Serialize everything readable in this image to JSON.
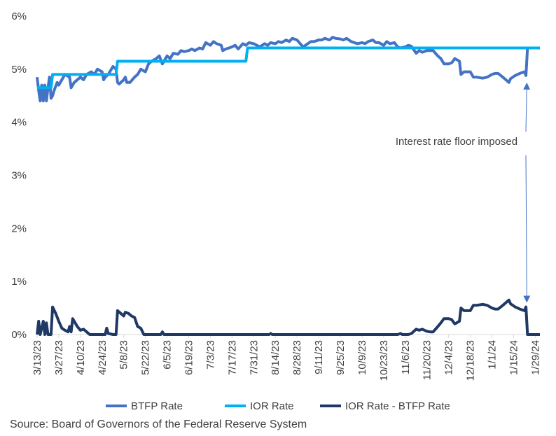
{
  "chart_data": {
    "type": "line",
    "title": "",
    "xlabel": "",
    "ylabel": "",
    "ylim": [
      0,
      6
    ],
    "y_ticks": [
      0,
      1,
      2,
      3,
      4,
      5,
      6
    ],
    "y_tick_labels": [
      "0%",
      "1%",
      "2%",
      "3%",
      "4%",
      "5%",
      "6%"
    ],
    "x_ticks": [
      "2023-03-13",
      "2023-03-27",
      "2023-04-10",
      "2023-04-24",
      "2023-05-08",
      "2023-05-22",
      "2023-06-05",
      "2023-06-19",
      "2023-07-03",
      "2023-07-17",
      "2023-07-31",
      "2023-08-14",
      "2023-08-28",
      "2023-09-11",
      "2023-09-25",
      "2023-10-09",
      "2023-10-23",
      "2023-11-06",
      "2023-11-20",
      "2023-12-04",
      "2023-12-18",
      "2024-01-01",
      "2024-01-15",
      "2024-01-29"
    ],
    "x_tick_labels": [
      "3/13/23",
      "3/27/23",
      "4/10/23",
      "4/24/23",
      "5/8/23",
      "5/22/23",
      "6/5/23",
      "6/19/23",
      "7/3/23",
      "7/17/23",
      "7/31/23",
      "8/14/23",
      "8/28/23",
      "9/11/23",
      "9/25/23",
      "10/9/23",
      "10/23/23",
      "11/6/23",
      "11/20/23",
      "12/4/23",
      "12/18/23",
      "1/1/24",
      "1/15/24",
      "1/29/24"
    ],
    "x_range": [
      "2023-03-13",
      "2024-02-01"
    ],
    "grid": "none",
    "legend_position": "bottom",
    "series": [
      {
        "name": "BTFP Rate",
        "color": "#4472C4",
        "points": [
          [
            "2023-03-13",
            4.85
          ],
          [
            "2023-03-14",
            4.6
          ],
          [
            "2023-03-15",
            4.4
          ],
          [
            "2023-03-16",
            4.7
          ],
          [
            "2023-03-17",
            4.4
          ],
          [
            "2023-03-18",
            4.7
          ],
          [
            "2023-03-19",
            4.4
          ],
          [
            "2023-03-20",
            4.65
          ],
          [
            "2023-03-21",
            4.85
          ],
          [
            "2023-03-22",
            4.45
          ],
          [
            "2023-03-23",
            4.5
          ],
          [
            "2023-03-24",
            4.6
          ],
          [
            "2023-03-26",
            4.75
          ],
          [
            "2023-03-27",
            4.7
          ],
          [
            "2023-03-29",
            4.8
          ],
          [
            "2023-03-31",
            4.9
          ],
          [
            "2023-04-03",
            4.85
          ],
          [
            "2023-04-04",
            4.65
          ],
          [
            "2023-04-06",
            4.75
          ],
          [
            "2023-04-10",
            4.85
          ],
          [
            "2023-04-12",
            4.8
          ],
          [
            "2023-04-14",
            4.9
          ],
          [
            "2023-04-17",
            4.95
          ],
          [
            "2023-04-19",
            4.9
          ],
          [
            "2023-04-21",
            5.0
          ],
          [
            "2023-04-24",
            4.95
          ],
          [
            "2023-04-25",
            4.8
          ],
          [
            "2023-04-26",
            4.85
          ],
          [
            "2023-04-28",
            4.9
          ],
          [
            "2023-05-01",
            5.05
          ],
          [
            "2023-05-03",
            5.0
          ],
          [
            "2023-05-04",
            4.75
          ],
          [
            "2023-05-05",
            4.72
          ],
          [
            "2023-05-08",
            4.8
          ],
          [
            "2023-05-09",
            4.85
          ],
          [
            "2023-05-10",
            4.75
          ],
          [
            "2023-05-12",
            4.75
          ],
          [
            "2023-05-15",
            4.85
          ],
          [
            "2023-05-17",
            4.9
          ],
          [
            "2023-05-19",
            5.0
          ],
          [
            "2023-05-22",
            4.95
          ],
          [
            "2023-05-24",
            5.1
          ],
          [
            "2023-05-26",
            5.15
          ],
          [
            "2023-05-29",
            5.2
          ],
          [
            "2023-05-31",
            5.25
          ],
          [
            "2023-06-02",
            5.1
          ],
          [
            "2023-06-05",
            5.25
          ],
          [
            "2023-06-07",
            5.2
          ],
          [
            "2023-06-09",
            5.3
          ],
          [
            "2023-06-12",
            5.28
          ],
          [
            "2023-06-14",
            5.35
          ],
          [
            "2023-06-16",
            5.33
          ],
          [
            "2023-06-19",
            5.35
          ],
          [
            "2023-06-21",
            5.38
          ],
          [
            "2023-06-23",
            5.35
          ],
          [
            "2023-06-26",
            5.4
          ],
          [
            "2023-06-28",
            5.38
          ],
          [
            "2023-06-30",
            5.5
          ],
          [
            "2023-07-03",
            5.45
          ],
          [
            "2023-07-05",
            5.52
          ],
          [
            "2023-07-07",
            5.48
          ],
          [
            "2023-07-10",
            5.45
          ],
          [
            "2023-07-11",
            5.35
          ],
          [
            "2023-07-13",
            5.38
          ],
          [
            "2023-07-17",
            5.42
          ],
          [
            "2023-07-19",
            5.45
          ],
          [
            "2023-07-21",
            5.38
          ],
          [
            "2023-07-24",
            5.48
          ],
          [
            "2023-07-26",
            5.45
          ],
          [
            "2023-07-28",
            5.5
          ],
          [
            "2023-07-31",
            5.48
          ],
          [
            "2023-08-02",
            5.45
          ],
          [
            "2023-08-04",
            5.42
          ],
          [
            "2023-08-07",
            5.48
          ],
          [
            "2023-08-09",
            5.45
          ],
          [
            "2023-08-11",
            5.5
          ],
          [
            "2023-08-14",
            5.48
          ],
          [
            "2023-08-16",
            5.52
          ],
          [
            "2023-08-18",
            5.5
          ],
          [
            "2023-08-21",
            5.55
          ],
          [
            "2023-08-23",
            5.52
          ],
          [
            "2023-08-25",
            5.58
          ],
          [
            "2023-08-28",
            5.55
          ],
          [
            "2023-08-30",
            5.48
          ],
          [
            "2023-09-01",
            5.42
          ],
          [
            "2023-09-04",
            5.48
          ],
          [
            "2023-09-06",
            5.52
          ],
          [
            "2023-09-08",
            5.52
          ],
          [
            "2023-09-11",
            5.55
          ],
          [
            "2023-09-13",
            5.55
          ],
          [
            "2023-09-15",
            5.58
          ],
          [
            "2023-09-18",
            5.55
          ],
          [
            "2023-09-20",
            5.6
          ],
          [
            "2023-09-22",
            5.58
          ],
          [
            "2023-09-25",
            5.57
          ],
          [
            "2023-09-27",
            5.55
          ],
          [
            "2023-09-29",
            5.58
          ],
          [
            "2023-10-02",
            5.52
          ],
          [
            "2023-10-04",
            5.5
          ],
          [
            "2023-10-06",
            5.48
          ],
          [
            "2023-10-09",
            5.5
          ],
          [
            "2023-10-11",
            5.48
          ],
          [
            "2023-10-13",
            5.52
          ],
          [
            "2023-10-16",
            5.55
          ],
          [
            "2023-10-18",
            5.5
          ],
          [
            "2023-10-20",
            5.5
          ],
          [
            "2023-10-23",
            5.45
          ],
          [
            "2023-10-25",
            5.52
          ],
          [
            "2023-10-27",
            5.48
          ],
          [
            "2023-10-30",
            5.5
          ],
          [
            "2023-11-01",
            5.42
          ],
          [
            "2023-11-03",
            5.4
          ],
          [
            "2023-11-06",
            5.42
          ],
          [
            "2023-11-08",
            5.45
          ],
          [
            "2023-11-10",
            5.43
          ],
          [
            "2023-11-13",
            5.3
          ],
          [
            "2023-11-15",
            5.35
          ],
          [
            "2023-11-17",
            5.32
          ],
          [
            "2023-11-20",
            5.35
          ],
          [
            "2023-11-22",
            5.35
          ],
          [
            "2023-11-24",
            5.35
          ],
          [
            "2023-11-27",
            5.25
          ],
          [
            "2023-11-29",
            5.2
          ],
          [
            "2023-12-01",
            5.1
          ],
          [
            "2023-12-04",
            5.1
          ],
          [
            "2023-12-06",
            5.12
          ],
          [
            "2023-12-08",
            5.2
          ],
          [
            "2023-12-11",
            5.15
          ],
          [
            "2023-12-12",
            4.9
          ],
          [
            "2023-12-14",
            4.95
          ],
          [
            "2023-12-18",
            4.95
          ],
          [
            "2023-12-20",
            4.85
          ],
          [
            "2023-12-22",
            4.85
          ],
          [
            "2023-12-26",
            4.83
          ],
          [
            "2023-12-29",
            4.85
          ],
          [
            "2024-01-01",
            4.9
          ],
          [
            "2024-01-03",
            4.92
          ],
          [
            "2024-01-05",
            4.92
          ],
          [
            "2024-01-08",
            4.85
          ],
          [
            "2024-01-10",
            4.8
          ],
          [
            "2024-01-12",
            4.75
          ],
          [
            "2024-01-13",
            4.82
          ],
          [
            "2024-01-16",
            4.88
          ],
          [
            "2024-01-19",
            4.92
          ],
          [
            "2024-01-22",
            4.95
          ],
          [
            "2024-01-23",
            4.88
          ],
          [
            "2024-01-24",
            5.4
          ],
          [
            "2024-02-01",
            5.4
          ]
        ]
      },
      {
        "name": "IOR Rate",
        "color": "#00B0F0",
        "points": [
          [
            "2023-03-13",
            4.65
          ],
          [
            "2023-03-22",
            4.65
          ],
          [
            "2023-03-23",
            4.9
          ],
          [
            "2023-05-03",
            4.9
          ],
          [
            "2023-05-04",
            5.15
          ],
          [
            "2023-07-26",
            5.15
          ],
          [
            "2023-07-27",
            5.4
          ],
          [
            "2024-02-01",
            5.4
          ]
        ]
      },
      {
        "name": "IOR Rate - BTFP Rate",
        "color": "#1F3864",
        "points": [
          [
            "2023-03-13",
            0.0
          ],
          [
            "2023-03-14",
            0.25
          ],
          [
            "2023-03-15",
            0.0
          ],
          [
            "2023-03-17",
            0.25
          ],
          [
            "2023-03-18",
            0.0
          ],
          [
            "2023-03-19",
            0.22
          ],
          [
            "2023-03-20",
            0.0
          ],
          [
            "2023-03-22",
            0.0
          ],
          [
            "2023-03-23",
            0.52
          ],
          [
            "2023-03-25",
            0.4
          ],
          [
            "2023-03-27",
            0.25
          ],
          [
            "2023-03-29",
            0.12
          ],
          [
            "2023-03-31",
            0.08
          ],
          [
            "2023-04-02",
            0.05
          ],
          [
            "2023-04-03",
            0.15
          ],
          [
            "2023-04-04",
            0.05
          ],
          [
            "2023-04-05",
            0.3
          ],
          [
            "2023-04-06",
            0.25
          ],
          [
            "2023-04-08",
            0.15
          ],
          [
            "2023-04-10",
            0.08
          ],
          [
            "2023-04-12",
            0.1
          ],
          [
            "2023-04-14",
            0.05
          ],
          [
            "2023-04-16",
            0.0
          ],
          [
            "2023-04-26",
            0.0
          ],
          [
            "2023-04-27",
            0.12
          ],
          [
            "2023-04-28",
            0.02
          ],
          [
            "2023-05-01",
            0.0
          ],
          [
            "2023-05-03",
            0.0
          ],
          [
            "2023-05-04",
            0.45
          ],
          [
            "2023-05-06",
            0.4
          ],
          [
            "2023-05-08",
            0.35
          ],
          [
            "2023-05-09",
            0.42
          ],
          [
            "2023-05-11",
            0.4
          ],
          [
            "2023-05-13",
            0.35
          ],
          [
            "2023-05-15",
            0.32
          ],
          [
            "2023-05-17",
            0.15
          ],
          [
            "2023-05-19",
            0.12
          ],
          [
            "2023-05-21",
            0.0
          ],
          [
            "2023-05-29",
            0.0
          ],
          [
            "2023-06-01",
            0.0
          ],
          [
            "2023-06-02",
            0.05
          ],
          [
            "2023-06-03",
            0.0
          ],
          [
            "2023-07-22",
            0.0
          ],
          [
            "2023-07-24",
            0.0
          ],
          [
            "2023-08-10",
            0.0
          ],
          [
            "2023-08-11",
            0.02
          ],
          [
            "2023-08-12",
            0.0
          ],
          [
            "2023-11-01",
            0.0
          ],
          [
            "2023-11-03",
            0.02
          ],
          [
            "2023-11-04",
            0.0
          ],
          [
            "2023-11-08",
            0.0
          ],
          [
            "2023-11-10",
            0.02
          ],
          [
            "2023-11-13",
            0.1
          ],
          [
            "2023-11-15",
            0.08
          ],
          [
            "2023-11-17",
            0.1
          ],
          [
            "2023-11-20",
            0.06
          ],
          [
            "2023-11-22",
            0.05
          ],
          [
            "2023-11-24",
            0.05
          ],
          [
            "2023-11-27",
            0.15
          ],
          [
            "2023-11-29",
            0.22
          ],
          [
            "2023-12-01",
            0.3
          ],
          [
            "2023-12-04",
            0.3
          ],
          [
            "2023-12-06",
            0.28
          ],
          [
            "2023-12-08",
            0.2
          ],
          [
            "2023-12-11",
            0.25
          ],
          [
            "2023-12-12",
            0.5
          ],
          [
            "2023-12-14",
            0.45
          ],
          [
            "2023-12-18",
            0.45
          ],
          [
            "2023-12-20",
            0.55
          ],
          [
            "2023-12-22",
            0.55
          ],
          [
            "2023-12-26",
            0.57
          ],
          [
            "2023-12-29",
            0.55
          ],
          [
            "2024-01-01",
            0.5
          ],
          [
            "2024-01-03",
            0.48
          ],
          [
            "2024-01-05",
            0.48
          ],
          [
            "2024-01-08",
            0.55
          ],
          [
            "2024-01-10",
            0.6
          ],
          [
            "2024-01-12",
            0.65
          ],
          [
            "2024-01-13",
            0.58
          ],
          [
            "2024-01-16",
            0.52
          ],
          [
            "2024-01-19",
            0.48
          ],
          [
            "2024-01-22",
            0.45
          ],
          [
            "2024-01-23",
            0.52
          ],
          [
            "2024-01-24",
            0.0
          ],
          [
            "2024-02-01",
            0.0
          ]
        ]
      }
    ],
    "annotation": {
      "text": "Interest rate floor imposed",
      "target_date": "2024-01-24",
      "points_to_values": [
        4.88,
        0.52
      ]
    }
  },
  "source": "Source: Board of Governors of the Federal Reserve System"
}
